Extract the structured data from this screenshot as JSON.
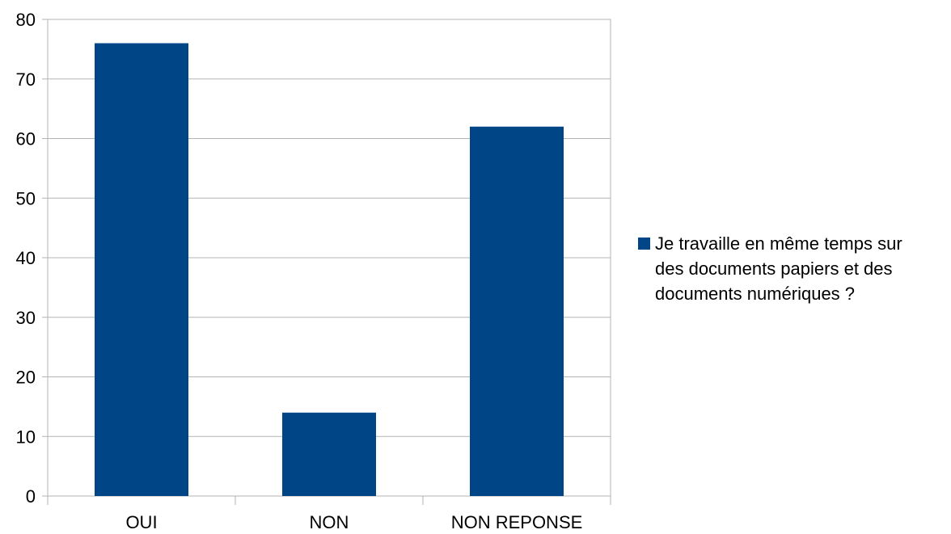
{
  "chart_data": {
    "type": "bar",
    "categories": [
      "OUI",
      "NON",
      "NON REPONSE"
    ],
    "series": [
      {
        "name": "Je travaille en même temps sur des documents papiers et des documents numériques ?",
        "values": [
          76,
          14,
          62
        ]
      }
    ],
    "legend_lines": [
      "Je travaille en même temps sur",
      "des documents papiers et des",
      "documents numériques ?"
    ],
    "ylim": [
      0,
      80
    ],
    "yticks": [
      0,
      10,
      20,
      30,
      40,
      50,
      60,
      70,
      80
    ],
    "grid": true,
    "legend_position": "right",
    "colors": {
      "bar": "#004586",
      "grid": "#b3b3b3",
      "axis": "#b3b3b3"
    }
  }
}
